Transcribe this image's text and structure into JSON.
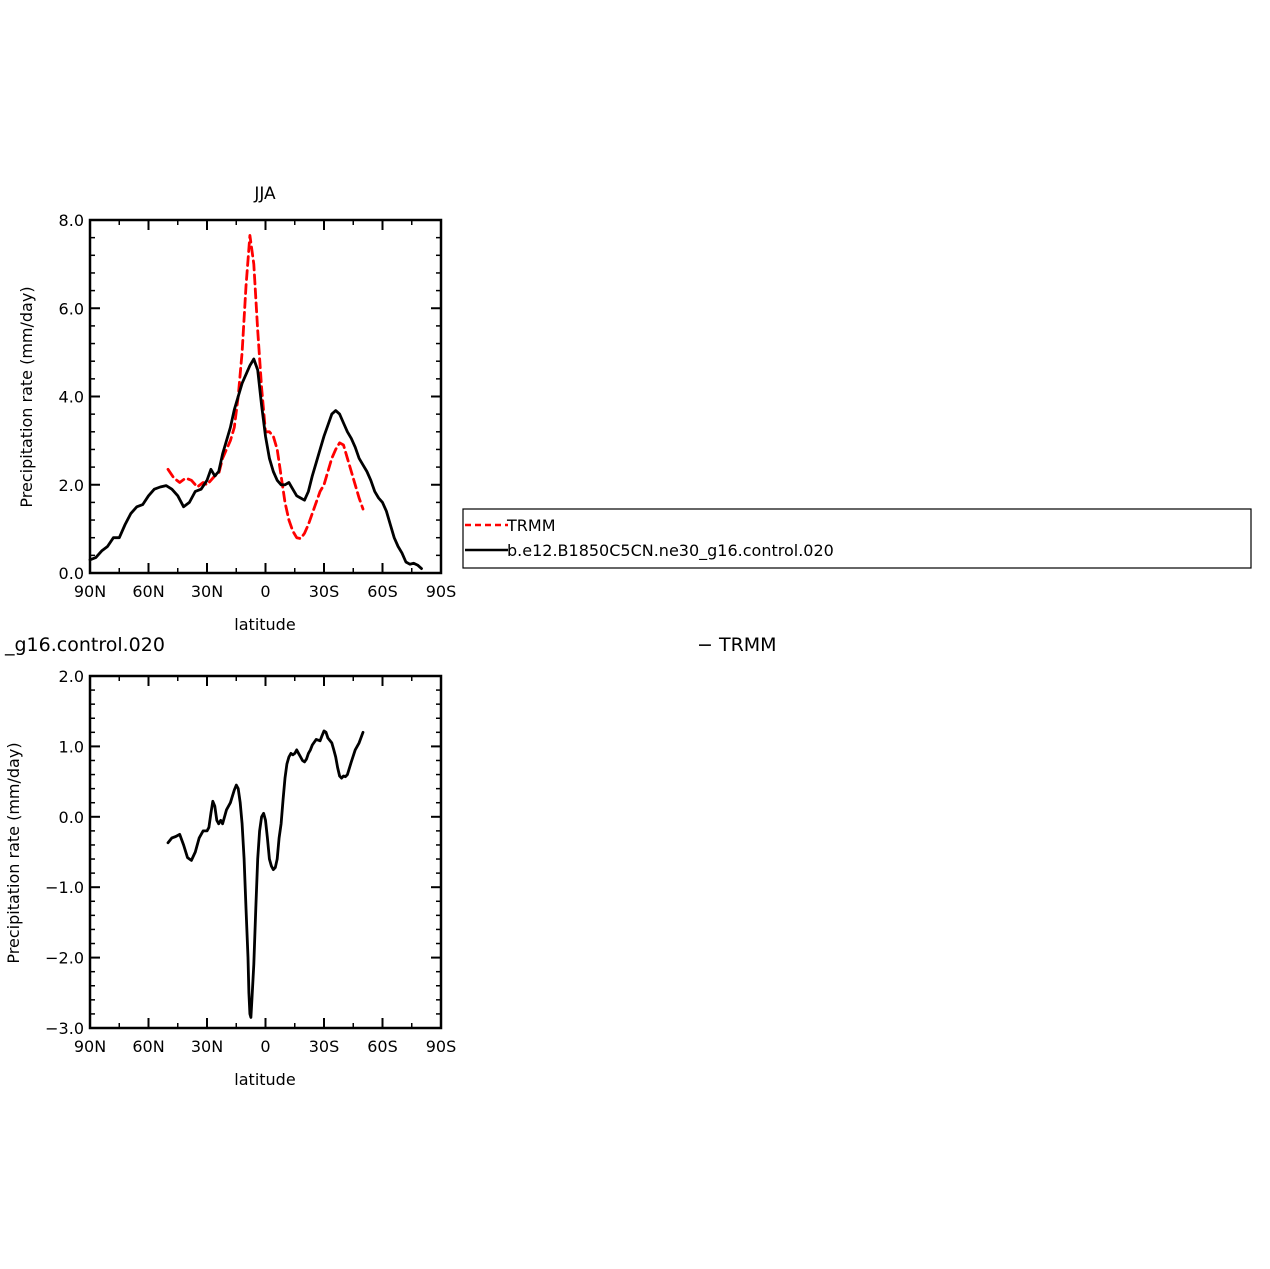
{
  "chart_data": [
    {
      "type": "line",
      "title": "JJA",
      "xlabel": "latitude",
      "ylabel": "Precipitation rate (mm/day)",
      "xlim": [
        -90,
        90
      ],
      "ylim": [
        0,
        8
      ],
      "x_ticks": [
        -90,
        -60,
        -30,
        0,
        30,
        60,
        90
      ],
      "x_tick_labels": [
        "90N",
        "60N",
        "30N",
        "0",
        "30S",
        "60S",
        "90S"
      ],
      "y_ticks": [
        0,
        2,
        4,
        6,
        8
      ],
      "y_tick_labels": [
        "0.0",
        "2.0",
        "4.0",
        "6.0",
        "8.0"
      ],
      "legend_position": "right",
      "series": [
        {
          "name": "TRMM",
          "color": "#ff0000",
          "style": "dashed",
          "points": [
            [
              -50,
              2.35
            ],
            [
              -47,
              2.15
            ],
            [
              -44,
              2.05
            ],
            [
              -41,
              2.15
            ],
            [
              -38,
              2.1
            ],
            [
              -35,
              1.95
            ],
            [
              -32,
              2.05
            ],
            [
              -30,
              2.0
            ],
            [
              -28,
              2.1
            ],
            [
              -26,
              2.2
            ],
            [
              -24,
              2.25
            ],
            [
              -22,
              2.6
            ],
            [
              -20,
              2.8
            ],
            [
              -18,
              3.0
            ],
            [
              -16,
              3.3
            ],
            [
              -14,
              4.0
            ],
            [
              -12,
              5.0
            ],
            [
              -10,
              6.5
            ],
            [
              -8,
              7.65
            ],
            [
              -6,
              7.0
            ],
            [
              -4,
              5.5
            ],
            [
              -2,
              4.2
            ],
            [
              0,
              3.2
            ],
            [
              2,
              3.2
            ],
            [
              4,
              3.1
            ],
            [
              6,
              2.8
            ],
            [
              8,
              2.2
            ],
            [
              10,
              1.6
            ],
            [
              12,
              1.2
            ],
            [
              14,
              0.95
            ],
            [
              16,
              0.8
            ],
            [
              18,
              0.78
            ],
            [
              20,
              0.9
            ],
            [
              22,
              1.1
            ],
            [
              24,
              1.35
            ],
            [
              26,
              1.6
            ],
            [
              28,
              1.85
            ],
            [
              30,
              2.0
            ],
            [
              32,
              2.3
            ],
            [
              34,
              2.6
            ],
            [
              36,
              2.8
            ],
            [
              38,
              2.95
            ],
            [
              40,
              2.9
            ],
            [
              42,
              2.6
            ],
            [
              44,
              2.3
            ],
            [
              46,
              2.0
            ],
            [
              48,
              1.7
            ],
            [
              50,
              1.45
            ]
          ]
        },
        {
          "name": "b.e12.B1850C5CN.ne30_g16.control.020",
          "color": "#000000",
          "style": "solid",
          "points": [
            [
              -90,
              0.3
            ],
            [
              -87,
              0.35
            ],
            [
              -84,
              0.5
            ],
            [
              -81,
              0.6
            ],
            [
              -78,
              0.8
            ],
            [
              -75,
              0.8
            ],
            [
              -72,
              1.1
            ],
            [
              -69,
              1.35
            ],
            [
              -66,
              1.5
            ],
            [
              -63,
              1.55
            ],
            [
              -60,
              1.75
            ],
            [
              -57,
              1.9
            ],
            [
              -54,
              1.95
            ],
            [
              -51,
              1.98
            ],
            [
              -48,
              1.9
            ],
            [
              -45,
              1.75
            ],
            [
              -42,
              1.5
            ],
            [
              -39,
              1.6
            ],
            [
              -36,
              1.85
            ],
            [
              -33,
              1.9
            ],
            [
              -30,
              2.1
            ],
            [
              -28,
              2.35
            ],
            [
              -26,
              2.2
            ],
            [
              -24,
              2.3
            ],
            [
              -22,
              2.7
            ],
            [
              -20,
              3.0
            ],
            [
              -18,
              3.3
            ],
            [
              -16,
              3.7
            ],
            [
              -14,
              4.0
            ],
            [
              -12,
              4.3
            ],
            [
              -10,
              4.5
            ],
            [
              -8,
              4.7
            ],
            [
              -6,
              4.85
            ],
            [
              -4,
              4.6
            ],
            [
              -2,
              3.8
            ],
            [
              0,
              3.1
            ],
            [
              2,
              2.6
            ],
            [
              4,
              2.3
            ],
            [
              6,
              2.1
            ],
            [
              8,
              2.0
            ],
            [
              10,
              2.0
            ],
            [
              12,
              2.05
            ],
            [
              14,
              1.9
            ],
            [
              16,
              1.75
            ],
            [
              18,
              1.7
            ],
            [
              20,
              1.65
            ],
            [
              22,
              1.85
            ],
            [
              24,
              2.2
            ],
            [
              26,
              2.5
            ],
            [
              28,
              2.8
            ],
            [
              30,
              3.1
            ],
            [
              32,
              3.35
            ],
            [
              34,
              3.6
            ],
            [
              36,
              3.68
            ],
            [
              38,
              3.6
            ],
            [
              40,
              3.4
            ],
            [
              42,
              3.2
            ],
            [
              44,
              3.05
            ],
            [
              46,
              2.85
            ],
            [
              48,
              2.6
            ],
            [
              50,
              2.45
            ],
            [
              52,
              2.3
            ],
            [
              54,
              2.1
            ],
            [
              56,
              1.85
            ],
            [
              58,
              1.7
            ],
            [
              60,
              1.6
            ],
            [
              62,
              1.4
            ],
            [
              64,
              1.1
            ],
            [
              66,
              0.8
            ],
            [
              68,
              0.6
            ],
            [
              70,
              0.45
            ],
            [
              72,
              0.25
            ],
            [
              74,
              0.2
            ],
            [
              76,
              0.22
            ],
            [
              78,
              0.18
            ],
            [
              80,
              0.1
            ]
          ]
        }
      ]
    },
    {
      "type": "line",
      "title": "_g16.control.020",
      "title_right": "TRMM",
      "xlabel": "latitude",
      "ylabel": "Precipitation rate (mm/day)",
      "xlim": [
        -90,
        90
      ],
      "ylim": [
        -3,
        2
      ],
      "x_ticks": [
        -90,
        -60,
        -30,
        0,
        30,
        60,
        90
      ],
      "x_tick_labels": [
        "90N",
        "60N",
        "30N",
        "0",
        "30S",
        "60S",
        "90S"
      ],
      "y_ticks": [
        -3,
        -2,
        -1,
        0,
        1,
        2
      ],
      "y_tick_labels": [
        "−3.0",
        "−2.0",
        "−1.0",
        "0.0",
        "1.0",
        "2.0"
      ],
      "series": [
        {
          "color": "#000000",
          "style": "solid",
          "points": [
            [
              -50,
              -0.37
            ],
            [
              -48,
              -0.3
            ],
            [
              -46,
              -0.28
            ],
            [
              -44,
              -0.25
            ],
            [
              -42,
              -0.4
            ],
            [
              -40,
              -0.58
            ],
            [
              -38,
              -0.62
            ],
            [
              -36,
              -0.5
            ],
            [
              -34,
              -0.3
            ],
            [
              -32,
              -0.2
            ],
            [
              -30,
              -0.2
            ],
            [
              -29,
              -0.15
            ],
            [
              -28,
              0.05
            ],
            [
              -27,
              0.22
            ],
            [
              -26,
              0.15
            ],
            [
              -25,
              -0.05
            ],
            [
              -24,
              -0.1
            ],
            [
              -23,
              -0.05
            ],
            [
              -22,
              -0.1
            ],
            [
              -20,
              0.1
            ],
            [
              -18,
              0.2
            ],
            [
              -16,
              0.38
            ],
            [
              -15,
              0.45
            ],
            [
              -14,
              0.4
            ],
            [
              -13,
              0.2
            ],
            [
              -12,
              -0.1
            ],
            [
              -11,
              -0.6
            ],
            [
              -10,
              -1.3
            ],
            [
              -9,
              -2.0
            ],
            [
              -8.5,
              -2.5
            ],
            [
              -8,
              -2.8
            ],
            [
              -7.5,
              -2.85
            ],
            [
              -7,
              -2.6
            ],
            [
              -6,
              -2.1
            ],
            [
              -5,
              -1.3
            ],
            [
              -4,
              -0.6
            ],
            [
              -3,
              -0.2
            ],
            [
              -2,
              0.0
            ],
            [
              -1,
              0.05
            ],
            [
              0,
              -0.05
            ],
            [
              1,
              -0.3
            ],
            [
              2,
              -0.6
            ],
            [
              3,
              -0.7
            ],
            [
              4,
              -0.75
            ],
            [
              5,
              -0.72
            ],
            [
              6,
              -0.6
            ],
            [
              7,
              -0.3
            ],
            [
              8,
              -0.1
            ],
            [
              9,
              0.25
            ],
            [
              10,
              0.55
            ],
            [
              11,
              0.75
            ],
            [
              12,
              0.85
            ],
            [
              13,
              0.9
            ],
            [
              14,
              0.88
            ],
            [
              15,
              0.9
            ],
            [
              16,
              0.95
            ],
            [
              17,
              0.9
            ],
            [
              18,
              0.85
            ],
            [
              19,
              0.8
            ],
            [
              20,
              0.78
            ],
            [
              21,
              0.82
            ],
            [
              22,
              0.9
            ],
            [
              23,
              0.95
            ],
            [
              24,
              1.02
            ],
            [
              26,
              1.1
            ],
            [
              28,
              1.08
            ],
            [
              29,
              1.15
            ],
            [
              30,
              1.22
            ],
            [
              31,
              1.2
            ],
            [
              32,
              1.12
            ],
            [
              34,
              1.05
            ],
            [
              35,
              0.95
            ],
            [
              36,
              0.85
            ],
            [
              37,
              0.7
            ],
            [
              38,
              0.58
            ],
            [
              39,
              0.55
            ],
            [
              40,
              0.58
            ],
            [
              41,
              0.57
            ],
            [
              42,
              0.6
            ],
            [
              44,
              0.78
            ],
            [
              46,
              0.95
            ],
            [
              48,
              1.05
            ],
            [
              50,
              1.2
            ]
          ]
        }
      ]
    }
  ],
  "legend": {
    "items": [
      {
        "label": "TRMM",
        "color": "#ff0000",
        "style": "dashed"
      },
      {
        "label": "b.e12.B1850C5CN.ne30_g16.control.020",
        "color": "#000000",
        "style": "solid"
      }
    ]
  }
}
